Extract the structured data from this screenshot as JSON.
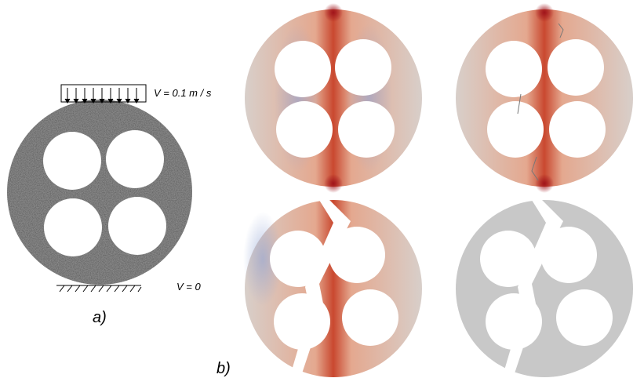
{
  "panel_a": {
    "label": "a)",
    "load": "V = 0.1  m / s",
    "support": "V = 0"
  },
  "panel_b": {
    "label": "b)"
  }
}
